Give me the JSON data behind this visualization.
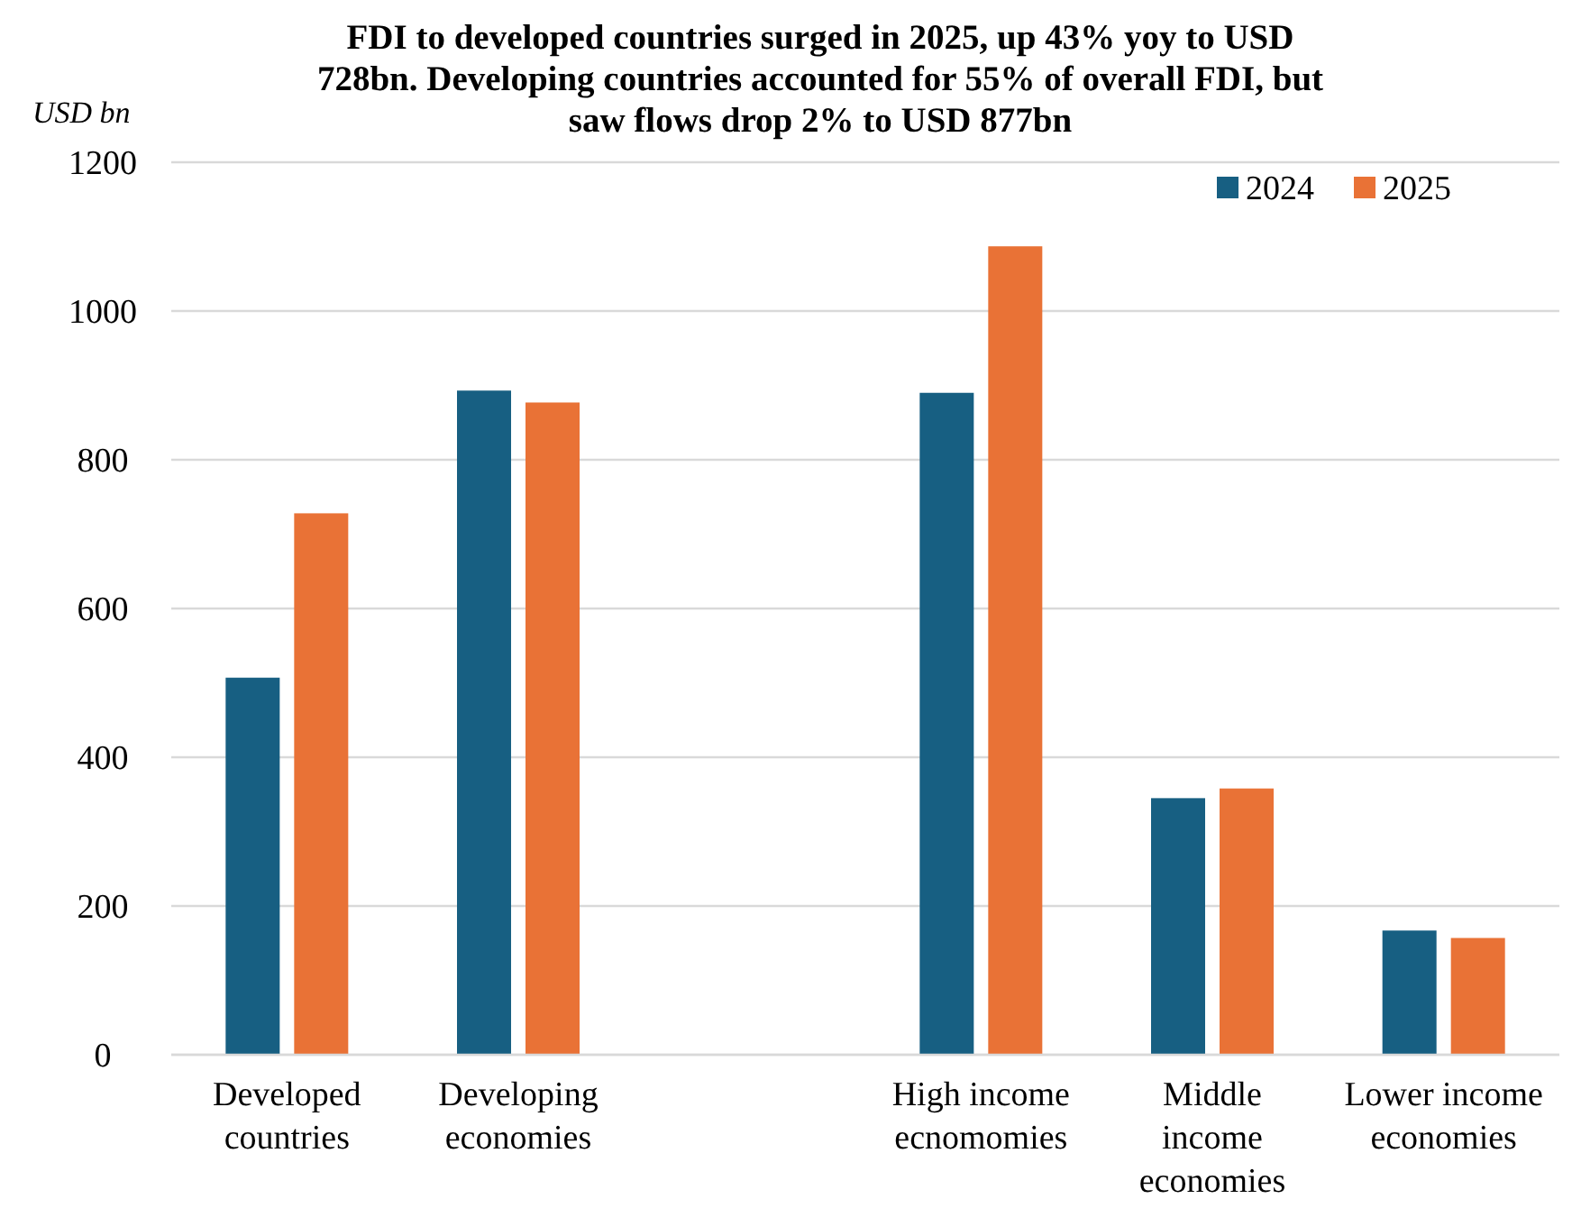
{
  "chart_data": {
    "type": "bar",
    "title": "FDI to developed countries surged in 2025, up 43% yoy to USD 728bn. Developing countries accounted for 55% of overall FDI, but saw flows drop 2% to USD 877bn",
    "ylabel": "USD bn",
    "categories": [
      "Developed countries",
      "Developing economies",
      null,
      "High income ecnomomies",
      "Middle income economies",
      "Lower income economies"
    ],
    "series": [
      {
        "name": "2024",
        "color": "#175f82",
        "values": [
          507,
          893,
          null,
          890,
          345,
          167
        ]
      },
      {
        "name": "2025",
        "color": "#e97236",
        "values": [
          728,
          877,
          null,
          1087,
          358,
          157
        ]
      }
    ],
    "ylim": [
      0,
      1200
    ],
    "yticks": [
      0,
      200,
      400,
      600,
      800,
      1000,
      1200
    ],
    "grid": "y",
    "legend": "top right"
  }
}
